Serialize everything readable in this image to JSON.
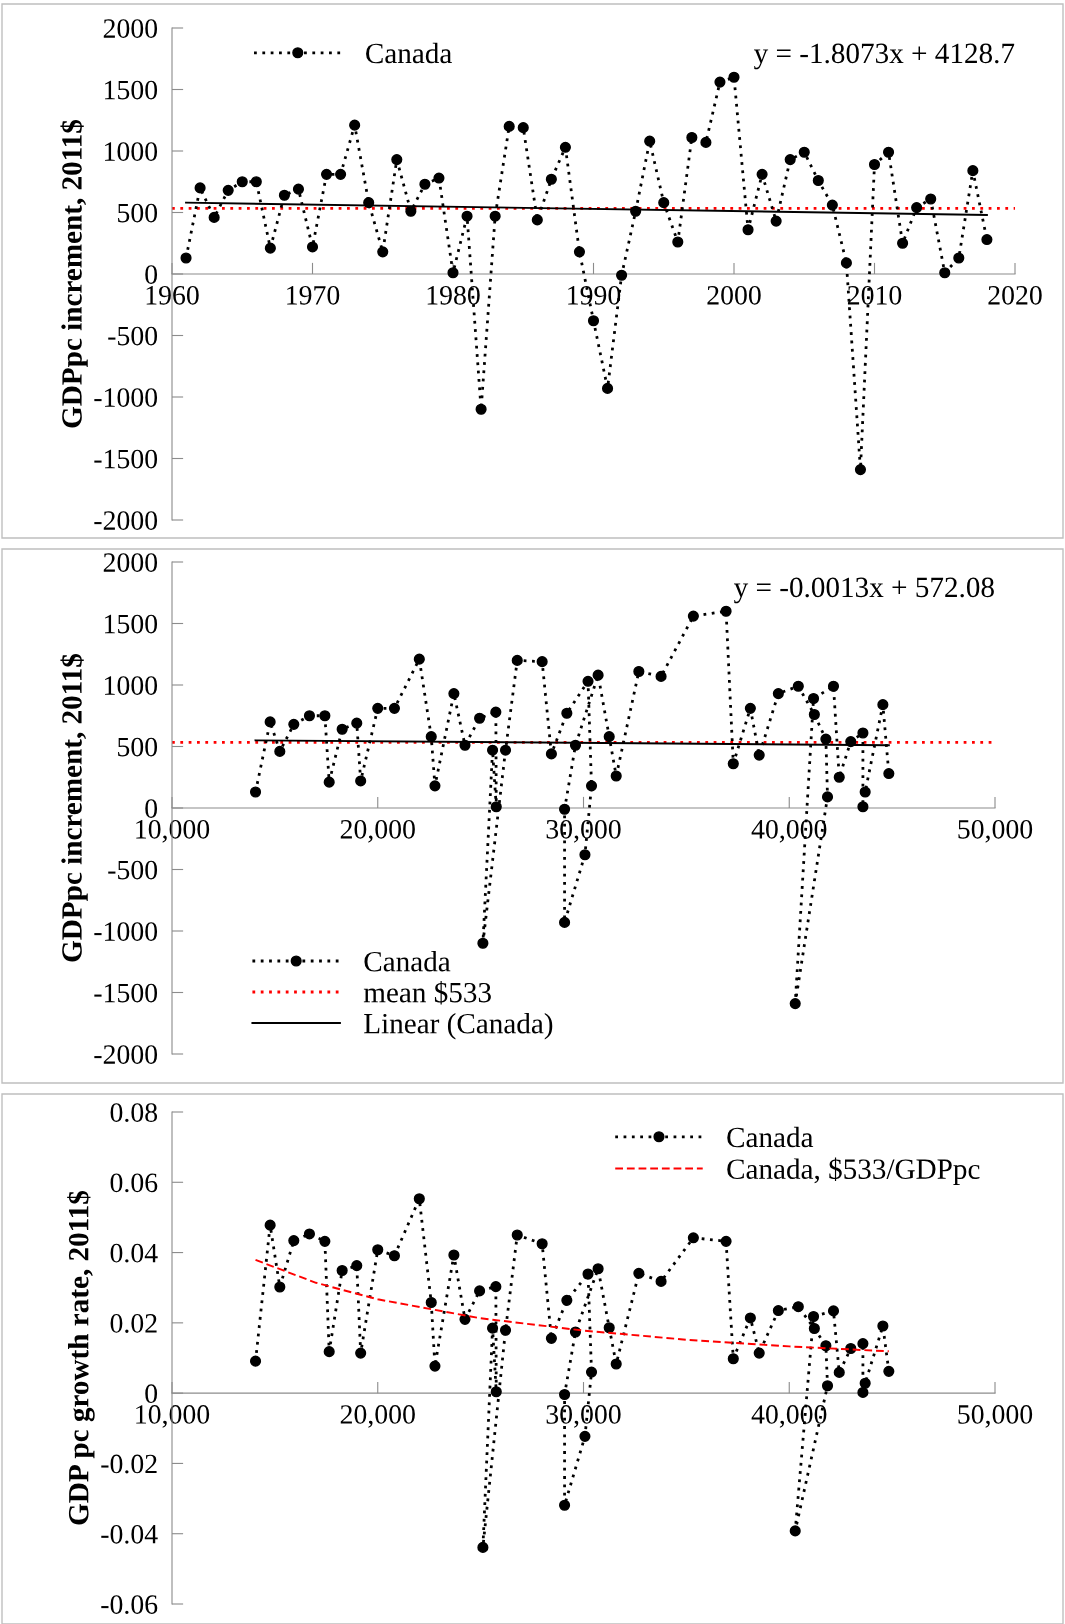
{
  "chart_data": [
    {
      "type": "line",
      "ylabel": "GDPpc increment, 2011$",
      "xlim": [
        1960,
        2020
      ],
      "xticks": [
        1960,
        1970,
        1980,
        1990,
        2000,
        2010,
        2020
      ],
      "ylim": [
        -2000,
        2000
      ],
      "yticks": [
        -2000,
        -1500,
        -1000,
        -500,
        0,
        500,
        1000,
        1500,
        2000
      ],
      "legend": "top left",
      "grid": false,
      "annotations": [
        "y = -1.8073x + 4128.7"
      ],
      "ref_lines": [
        {
          "axis": "y",
          "value": 533,
          "color": "#ff0000",
          "line_style": "dotted"
        }
      ],
      "series": [
        {
          "name": "Canada",
          "color": "#000000",
          "marker": "circle",
          "line_style": "dotted",
          "x": [
            1961,
            1962,
            1963,
            1964,
            1965,
            1966,
            1967,
            1968,
            1969,
            1970,
            1971,
            1972,
            1973,
            1974,
            1975,
            1976,
            1977,
            1978,
            1979,
            1980,
            1981,
            1982,
            1983,
            1984,
            1985,
            1986,
            1987,
            1988,
            1989,
            1990,
            1991,
            1992,
            1993,
            1994,
            1995,
            1996,
            1997,
            1998,
            1999,
            2000,
            2001,
            2002,
            2003,
            2004,
            2005,
            2006,
            2007,
            2008,
            2009,
            2010,
            2011,
            2012,
            2013,
            2014,
            2015,
            2016,
            2017,
            2018
          ],
          "values": [
            130,
            700,
            460,
            680,
            750,
            750,
            210,
            640,
            690,
            220,
            810,
            810,
            1210,
            580,
            180,
            930,
            510,
            730,
            780,
            10,
            470,
            -1100,
            470,
            1200,
            1190,
            440,
            770,
            1030,
            180,
            -380,
            -930,
            -10,
            510,
            1080,
            580,
            260,
            1110,
            1070,
            1560,
            1600,
            360,
            810,
            430,
            930,
            990,
            760,
            560,
            90,
            -1590,
            890,
            990,
            250,
            540,
            610,
            10,
            130,
            840,
            280
          ]
        },
        {
          "color": "#000000",
          "marker": "none",
          "line_style": "solid",
          "x": [
            1961,
            2018
          ],
          "values": [
            580,
            480
          ]
        }
      ]
    },
    {
      "type": "line",
      "ylabel": "GDPpc increment, 2011$",
      "xlim": [
        10000,
        50000
      ],
      "xticks": [
        {
          "value": 10000,
          "label": "10,000"
        },
        {
          "value": 20000,
          "label": "20,000"
        },
        {
          "value": 30000,
          "label": "30,000"
        },
        {
          "value": 40000,
          "label": "40,000"
        },
        {
          "value": 50000,
          "label": "50,000"
        }
      ],
      "ylim": [
        -2000,
        2000
      ],
      "yticks": [
        -2000,
        -1500,
        -1000,
        -500,
        0,
        500,
        1000,
        1500,
        2000
      ],
      "legend": "bottom left",
      "grid": false,
      "annotations": [
        "y = -0.0013x + 572.08"
      ],
      "ref_lines": [
        {
          "axis": "y",
          "value": 533,
          "label": "mean $533",
          "color": "#ff0000",
          "line_style": "dotted"
        }
      ],
      "series": [
        {
          "name": "Canada",
          "color": "#000000",
          "marker": "circle",
          "line_style": "dotted",
          "x": [
            14060,
            14770,
            15240,
            15920,
            16680,
            17430,
            17640,
            18270,
            18980,
            19170,
            20000,
            20810,
            22020,
            22600,
            22780,
            23700,
            24240,
            24950,
            25740,
            25760,
            25580,
            25110,
            26210,
            26780,
            27990,
            28440,
            29190,
            30220,
            30390,
            30070,
            29080,
            29080,
            29610,
            30710,
            31250,
            31590,
            32690,
            33770,
            35340,
            36930,
            37280,
            38110,
            38540,
            39470,
            40440,
            41220,
            41780,
            41860,
            40290,
            41180,
            42150,
            42430,
            42990,
            43580,
            43580,
            43690,
            44550,
            44840
          ],
          "values": [
            130,
            700,
            460,
            680,
            750,
            750,
            210,
            640,
            690,
            220,
            810,
            810,
            1210,
            580,
            180,
            930,
            510,
            730,
            780,
            10,
            470,
            -1100,
            470,
            1200,
            1190,
            440,
            770,
            1030,
            180,
            -380,
            -930,
            -10,
            510,
            1080,
            580,
            260,
            1110,
            1070,
            1560,
            1600,
            360,
            810,
            430,
            930,
            990,
            760,
            560,
            90,
            -1590,
            890,
            990,
            250,
            540,
            610,
            10,
            130,
            840,
            280
          ]
        },
        {
          "name": "Linear (Canada)",
          "color": "#000000",
          "marker": "none",
          "line_style": "solid",
          "x": [
            14060,
            44840
          ],
          "values": [
            550,
            510
          ]
        }
      ]
    },
    {
      "type": "line",
      "ylabel": "GDP pc growth rate, 2011$",
      "xlim": [
        10000,
        50000
      ],
      "xticks": [
        {
          "value": 10000,
          "label": "10,000"
        },
        {
          "value": 20000,
          "label": "20,000"
        },
        {
          "value": 30000,
          "label": "30,000"
        },
        {
          "value": 40000,
          "label": "40,000"
        },
        {
          "value": 50000,
          "label": "50,000"
        }
      ],
      "ylim": [
        -0.06,
        0.08
      ],
      "yticks": [
        -0.06,
        -0.04,
        -0.02,
        0,
        0.02,
        0.04,
        0.06,
        0.08
      ],
      "legend": "top right",
      "grid": false,
      "series": [
        {
          "name": "Canada",
          "color": "#000000",
          "marker": "circle",
          "line_style": "dotted",
          "x": [
            14060,
            14770,
            15240,
            15920,
            16680,
            17430,
            17640,
            18270,
            18980,
            19170,
            20000,
            20810,
            22020,
            22600,
            22780,
            23700,
            24240,
            24950,
            25740,
            25760,
            25580,
            25110,
            26210,
            26780,
            27990,
            28440,
            29190,
            30220,
            30390,
            30070,
            29080,
            29080,
            29610,
            30710,
            31250,
            31590,
            32690,
            33770,
            35340,
            36930,
            37280,
            38110,
            38540,
            39470,
            40440,
            41220,
            41780,
            41860,
            40290,
            41180,
            42150,
            42430,
            42990,
            43580,
            43580,
            43690,
            44550,
            44840
          ],
          "values": [
            0.0091,
            0.0478,
            0.0302,
            0.0434,
            0.0453,
            0.0432,
            0.0118,
            0.0349,
            0.0363,
            0.0114,
            0.0408,
            0.0391,
            0.0553,
            0.0258,
            0.0077,
            0.0393,
            0.021,
            0.0291,
            0.0303,
            0.0004,
            0.0185,
            -0.0439,
            0.0179,
            0.045,
            0.0425,
            0.0156,
            0.0264,
            0.0339,
            0.006,
            -0.0123,
            -0.0319,
            -0.0004,
            0.0174,
            0.0354,
            0.0186,
            0.0083,
            0.0341,
            0.0318,
            0.0442,
            0.0432,
            0.0098,
            0.0214,
            0.0114,
            0.0235,
            0.0246,
            0.0184,
            0.0135,
            0.0021,
            -0.0392,
            0.0218,
            0.0234,
            0.0059,
            0.0127,
            0.0141,
            0.0002,
            0.0028,
            0.0191,
            0.0062
          ]
        },
        {
          "name": "Canada, $533/GDPpc",
          "color": "#ff0000",
          "marker": "none",
          "line_style": "dashed",
          "x": [
            14060,
            17000,
            20000,
            25000,
            30000,
            35000,
            40000,
            44840
          ],
          "values": [
            0.0379,
            0.0314,
            0.0267,
            0.0213,
            0.0178,
            0.0152,
            0.0133,
            0.0119
          ]
        }
      ]
    }
  ]
}
